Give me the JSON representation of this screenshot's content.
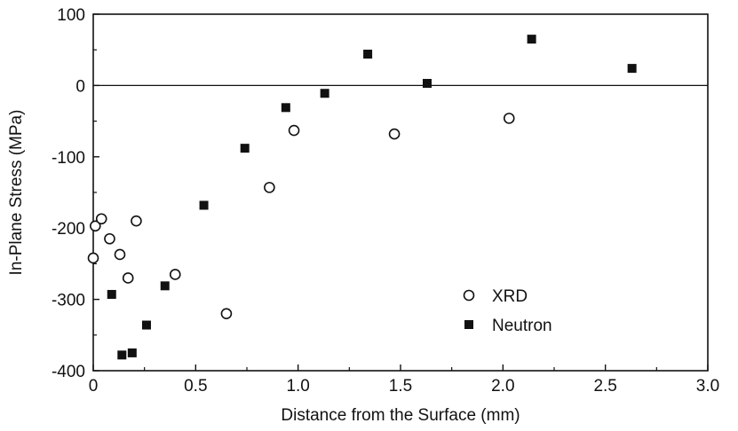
{
  "chart_data": {
    "type": "scatter",
    "title": "",
    "xlabel": "Distance from the Surface (mm)",
    "ylabel": "In-Plane Stress (MPa)",
    "xlim": [
      0,
      3.0
    ],
    "ylim": [
      -400,
      100
    ],
    "x_ticks": [
      "0",
      "0.5",
      "1.0",
      "1.5",
      "2.0",
      "2.5",
      "3.0"
    ],
    "y_ticks": [
      "100",
      "0",
      "-100",
      "-200",
      "-300",
      "-400"
    ],
    "zero_line": true,
    "grid": false,
    "legend_position": "bottom-right",
    "series": [
      {
        "name": "XRD",
        "marker": "open-circle",
        "color": "#111111",
        "points": [
          {
            "x": 0.0,
            "y": -242
          },
          {
            "x": 0.01,
            "y": -197
          },
          {
            "x": 0.04,
            "y": -187
          },
          {
            "x": 0.08,
            "y": -215
          },
          {
            "x": 0.13,
            "y": -237
          },
          {
            "x": 0.17,
            "y": -270
          },
          {
            "x": 0.21,
            "y": -190
          },
          {
            "x": 0.4,
            "y": -265
          },
          {
            "x": 0.65,
            "y": -320
          },
          {
            "x": 0.86,
            "y": -143
          },
          {
            "x": 0.98,
            "y": -63
          },
          {
            "x": 1.47,
            "y": -68
          },
          {
            "x": 2.03,
            "y": -46
          }
        ]
      },
      {
        "name": "Neutron",
        "marker": "filled-square",
        "color": "#111111",
        "points": [
          {
            "x": 0.09,
            "y": -293
          },
          {
            "x": 0.14,
            "y": -378
          },
          {
            "x": 0.19,
            "y": -375
          },
          {
            "x": 0.26,
            "y": -336
          },
          {
            "x": 0.35,
            "y": -281
          },
          {
            "x": 0.54,
            "y": -168
          },
          {
            "x": 0.74,
            "y": -88
          },
          {
            "x": 0.94,
            "y": -31
          },
          {
            "x": 1.13,
            "y": -11
          },
          {
            "x": 1.34,
            "y": 44
          },
          {
            "x": 1.63,
            "y": 3
          },
          {
            "x": 2.14,
            "y": 65
          },
          {
            "x": 2.63,
            "y": 24
          }
        ]
      }
    ]
  }
}
